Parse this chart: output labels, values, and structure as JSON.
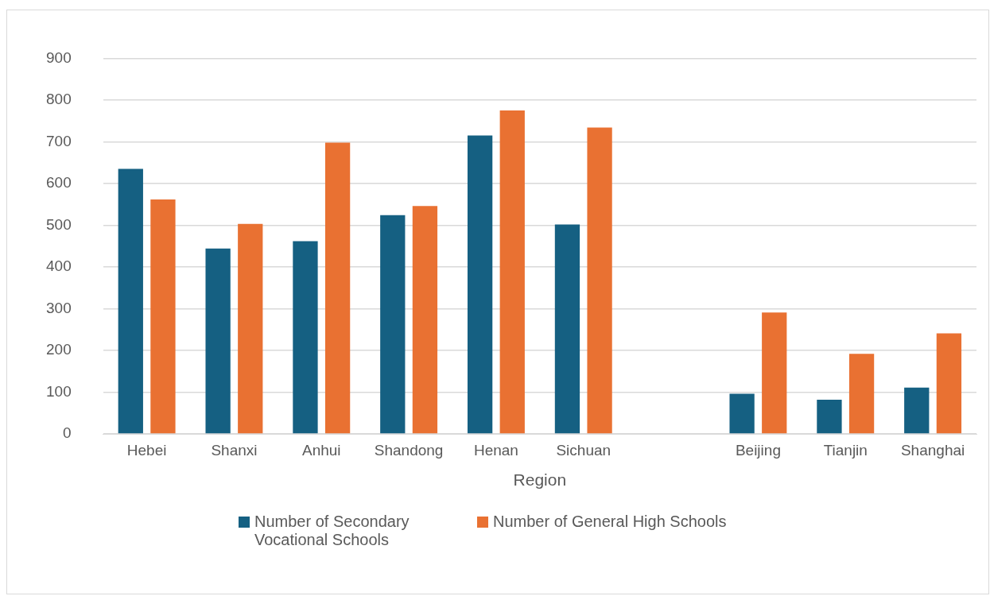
{
  "chart_data": {
    "type": "bar",
    "xlabel": "Region",
    "categories": [
      "Hebei",
      "Shanxi",
      "Anhui",
      "Shandong",
      "Henan",
      "Sichuan",
      null,
      "Beijing",
      "Tianjin",
      "Shanghai"
    ],
    "series": [
      {
        "name": "Number of Secondary Vocational Schools",
        "color": "#156082",
        "values": [
          635,
          444,
          462,
          524,
          715,
          502,
          null,
          96,
          82,
          111
        ]
      },
      {
        "name": "Number of General High Schools",
        "color": "#e97132",
        "values": [
          562,
          503,
          698,
          546,
          775,
          734,
          null,
          291,
          192,
          241
        ]
      }
    ],
    "ylim": [
      0,
      900
    ],
    "yticks": [
      0,
      100,
      200,
      300,
      400,
      500,
      600,
      700,
      800,
      900
    ],
    "grid": "y",
    "legend": "bottom"
  }
}
